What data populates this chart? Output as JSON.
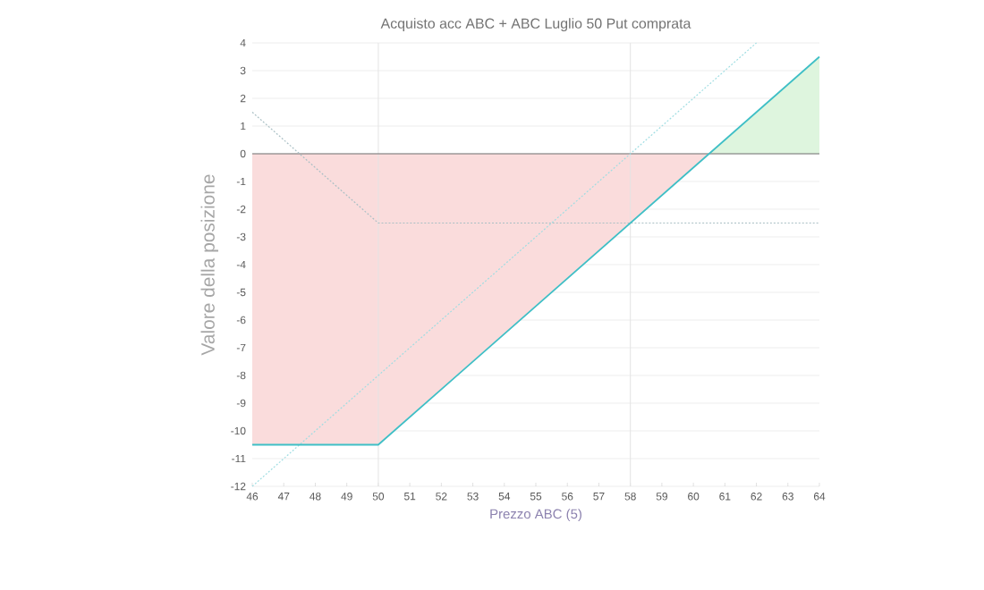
{
  "chart_data": {
    "type": "line",
    "title": "Acquisto acc ABC + ABC Luglio 50 Put comprata",
    "xlabel": "Prezzo ABC (5)",
    "ylabel": "Valore della posizione",
    "xlim": [
      46,
      64
    ],
    "xticks": [
      46,
      47,
      48,
      49,
      50,
      51,
      52,
      53,
      54,
      55,
      56,
      57,
      58,
      59,
      60,
      61,
      62,
      63,
      64
    ],
    "ylim": [
      -12,
      4
    ],
    "yticks": [
      -12,
      -11,
      -10,
      -9,
      -8,
      -7,
      -6,
      -5,
      -4,
      -3,
      -2,
      -1,
      0,
      1,
      2,
      3,
      4
    ],
    "grid": "y",
    "marker": "none",
    "series": [
      {
        "type": "area",
        "color": "#fadcdc",
        "x": [
          46,
          50,
          60.5
        ],
        "values": [
          -10.5,
          -10.5,
          0
        ]
      },
      {
        "type": "area",
        "color": "#def5de",
        "x": [
          60.5,
          64
        ],
        "values": [
          0,
          3.5
        ]
      },
      {
        "color": "#9fdde2",
        "line_style": "dotted",
        "x": [
          46,
          62
        ],
        "values": [
          -12,
          4
        ]
      },
      {
        "color": "#a9bfc4",
        "line_style": "dotted",
        "x": [
          46,
          50,
          64
        ],
        "values": [
          1.5,
          -2.5,
          -2.5
        ]
      },
      {
        "color": "#3fbfc6",
        "line_style": "solid",
        "x": [
          46,
          50,
          64
        ],
        "values": [
          -10.5,
          -10.5,
          3.5
        ]
      }
    ],
    "ref_lines": [
      {
        "axis": "y",
        "value": 0,
        "color": "#707070"
      },
      {
        "axis": "x",
        "value": 50,
        "color": "#e4e4e4"
      },
      {
        "axis": "x",
        "value": 58,
        "color": "#e4e4e4"
      }
    ]
  }
}
